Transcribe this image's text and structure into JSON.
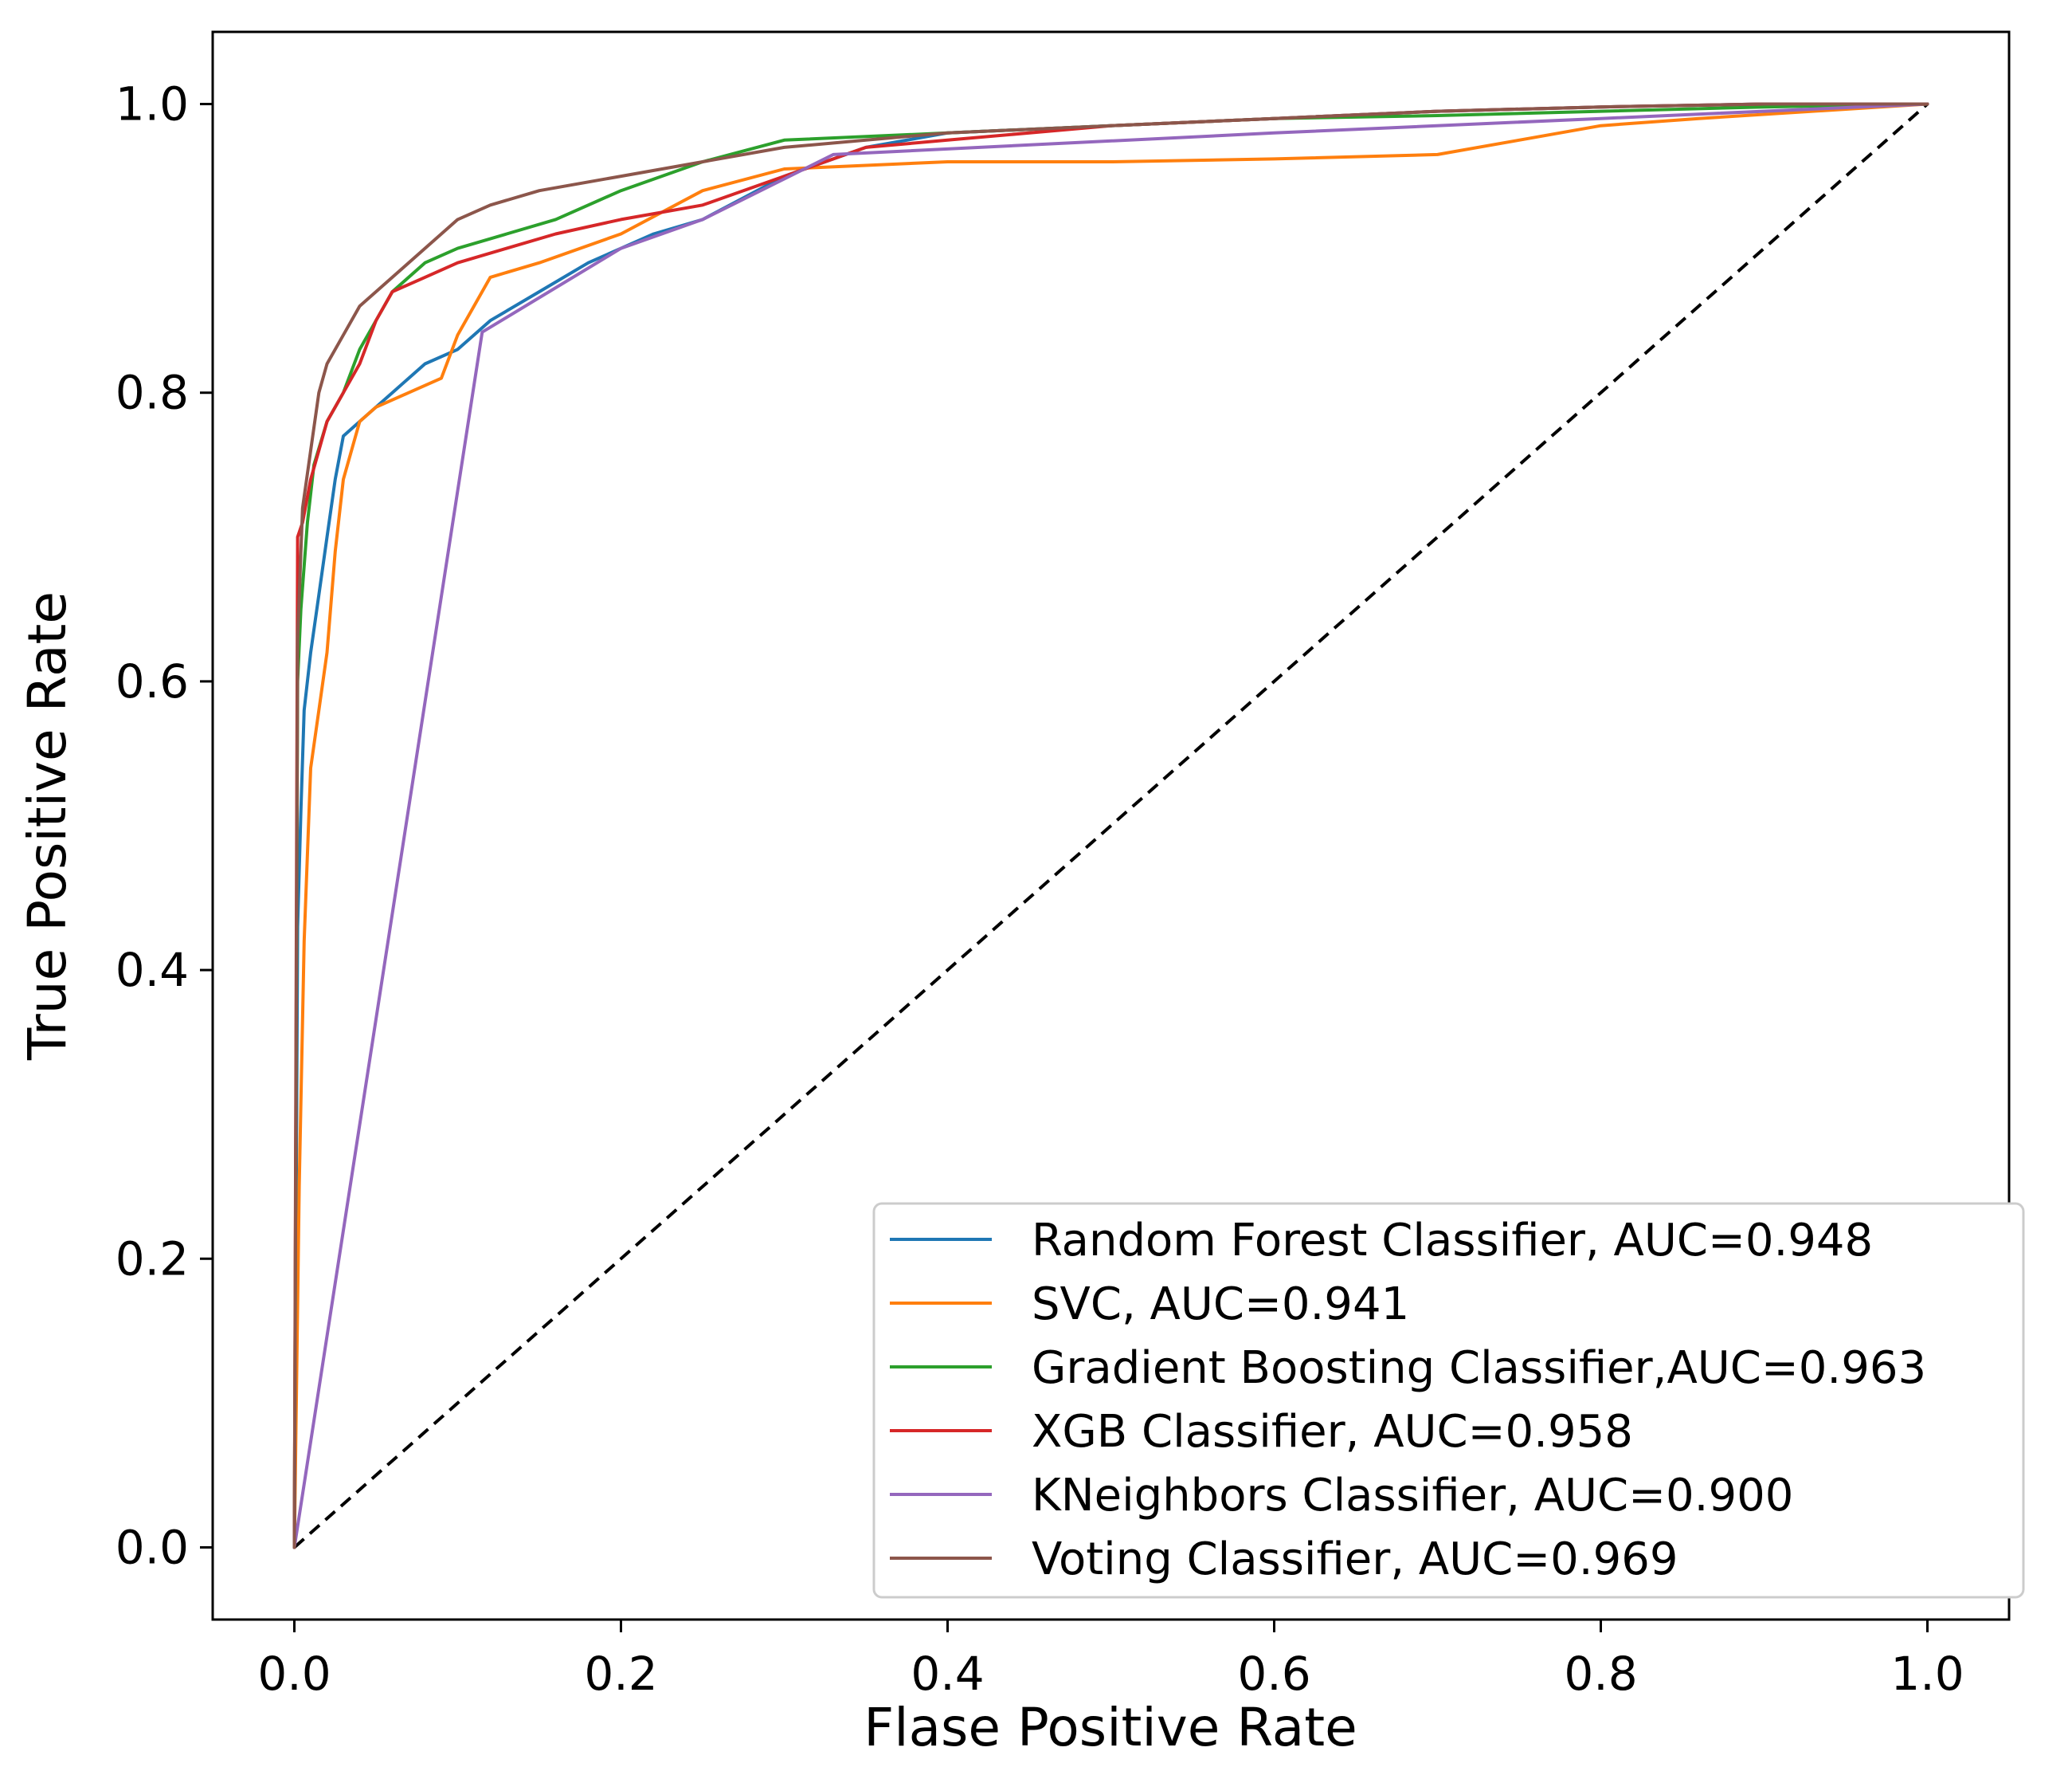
{
  "chart_data": {
    "type": "line",
    "title": "",
    "xlabel": "Flase Positive Rate",
    "ylabel": "True Positive Rate",
    "xlim": [
      -0.05,
      1.05
    ],
    "ylim": [
      -0.05,
      1.05
    ],
    "xticks": [
      0.0,
      0.2,
      0.4,
      0.6,
      0.8,
      1.0
    ],
    "yticks": [
      0.0,
      0.2,
      0.4,
      0.6,
      0.8,
      1.0
    ],
    "xtick_labels": [
      "0.0",
      "0.2",
      "0.4",
      "0.6",
      "0.8",
      "1.0"
    ],
    "ytick_labels": [
      "0.0",
      "0.2",
      "0.4",
      "0.6",
      "0.8",
      "1.0"
    ],
    "grid": false,
    "legend_position": "lower-right",
    "reference_line": {
      "name": "chance",
      "style": "dashed",
      "color": "#000000",
      "x": [
        0,
        1
      ],
      "y": [
        0,
        1
      ]
    },
    "series": [
      {
        "name": "Random Forest Classifier, AUC=0.948",
        "color": "#1f77b4",
        "x": [
          0,
          0.002,
          0.004,
          0.006,
          0.01,
          0.015,
          0.02,
          0.025,
          0.03,
          0.04,
          0.05,
          0.06,
          0.07,
          0.08,
          0.1,
          0.12,
          0.15,
          0.18,
          0.2,
          0.22,
          0.25,
          0.3,
          0.35,
          0.4,
          0.5,
          0.6,
          0.7,
          0.8,
          0.9,
          1.0
        ],
        "y": [
          0,
          0.43,
          0.51,
          0.58,
          0.62,
          0.66,
          0.7,
          0.74,
          0.77,
          0.78,
          0.79,
          0.8,
          0.81,
          0.82,
          0.83,
          0.85,
          0.87,
          0.89,
          0.9,
          0.91,
          0.92,
          0.95,
          0.97,
          0.98,
          0.985,
          0.99,
          0.995,
          0.998,
          1.0,
          1.0
        ]
      },
      {
        "name": "SVC, AUC=0.941",
        "color": "#ff7f0e",
        "x": [
          0,
          0.003,
          0.006,
          0.01,
          0.015,
          0.02,
          0.025,
          0.03,
          0.04,
          0.05,
          0.07,
          0.09,
          0.1,
          0.12,
          0.15,
          0.2,
          0.25,
          0.3,
          0.4,
          0.5,
          0.6,
          0.7,
          0.75,
          0.8,
          0.86,
          1.0
        ],
        "y": [
          0,
          0.25,
          0.42,
          0.54,
          0.58,
          0.62,
          0.69,
          0.74,
          0.78,
          0.79,
          0.8,
          0.81,
          0.84,
          0.88,
          0.89,
          0.91,
          0.94,
          0.955,
          0.96,
          0.96,
          0.962,
          0.965,
          0.975,
          0.985,
          0.99,
          1.0
        ]
      },
      {
        "name": "Gradient Boosting Classifier,AUC=0.963",
        "color": "#2ca02c",
        "x": [
          0,
          0.002,
          0.004,
          0.008,
          0.012,
          0.02,
          0.03,
          0.04,
          0.05,
          0.06,
          0.08,
          0.1,
          0.13,
          0.16,
          0.2,
          0.25,
          0.3,
          0.4,
          0.5,
          0.6,
          0.7,
          0.8,
          0.9,
          1.0
        ],
        "y": [
          0,
          0.6,
          0.65,
          0.71,
          0.75,
          0.78,
          0.8,
          0.83,
          0.85,
          0.87,
          0.89,
          0.9,
          0.91,
          0.92,
          0.94,
          0.96,
          0.975,
          0.98,
          0.985,
          0.99,
          0.992,
          0.995,
          0.998,
          1.0
        ]
      },
      {
        "name": "XGB  Classifier, AUC=0.958",
        "color": "#d62728",
        "x": [
          0,
          0.002,
          0.005,
          0.01,
          0.015,
          0.02,
          0.03,
          0.04,
          0.05,
          0.06,
          0.08,
          0.1,
          0.13,
          0.16,
          0.2,
          0.25,
          0.3,
          0.35,
          0.4,
          0.5,
          0.6,
          0.7,
          0.8,
          0.9,
          1.0
        ],
        "y": [
          0,
          0.7,
          0.71,
          0.74,
          0.76,
          0.78,
          0.8,
          0.82,
          0.85,
          0.87,
          0.88,
          0.89,
          0.9,
          0.91,
          0.92,
          0.93,
          0.95,
          0.97,
          0.975,
          0.985,
          0.99,
          0.995,
          0.998,
          1.0,
          1.0
        ]
      },
      {
        "name": "KNeighbors  Classifier, AUC=0.900",
        "color": "#9467bd",
        "x": [
          0,
          0.115,
          0.2,
          0.25,
          0.33,
          0.6,
          0.8,
          1.0
        ],
        "y": [
          0,
          0.842,
          0.9,
          0.92,
          0.965,
          0.98,
          0.99,
          1.0
        ]
      },
      {
        "name": "Voting  Classifier, AUC=0.969",
        "color": "#8c564b",
        "x": [
          0,
          0.002,
          0.005,
          0.01,
          0.015,
          0.02,
          0.03,
          0.04,
          0.05,
          0.06,
          0.08,
          0.1,
          0.12,
          0.15,
          0.2,
          0.25,
          0.3,
          0.35,
          0.4,
          0.5,
          0.6,
          0.7,
          0.8,
          0.9,
          1.0
        ],
        "y": [
          0,
          0.63,
          0.72,
          0.76,
          0.8,
          0.82,
          0.84,
          0.86,
          0.87,
          0.88,
          0.9,
          0.92,
          0.93,
          0.94,
          0.95,
          0.96,
          0.97,
          0.975,
          0.98,
          0.985,
          0.99,
          0.995,
          0.998,
          1.0,
          1.0
        ]
      }
    ]
  }
}
